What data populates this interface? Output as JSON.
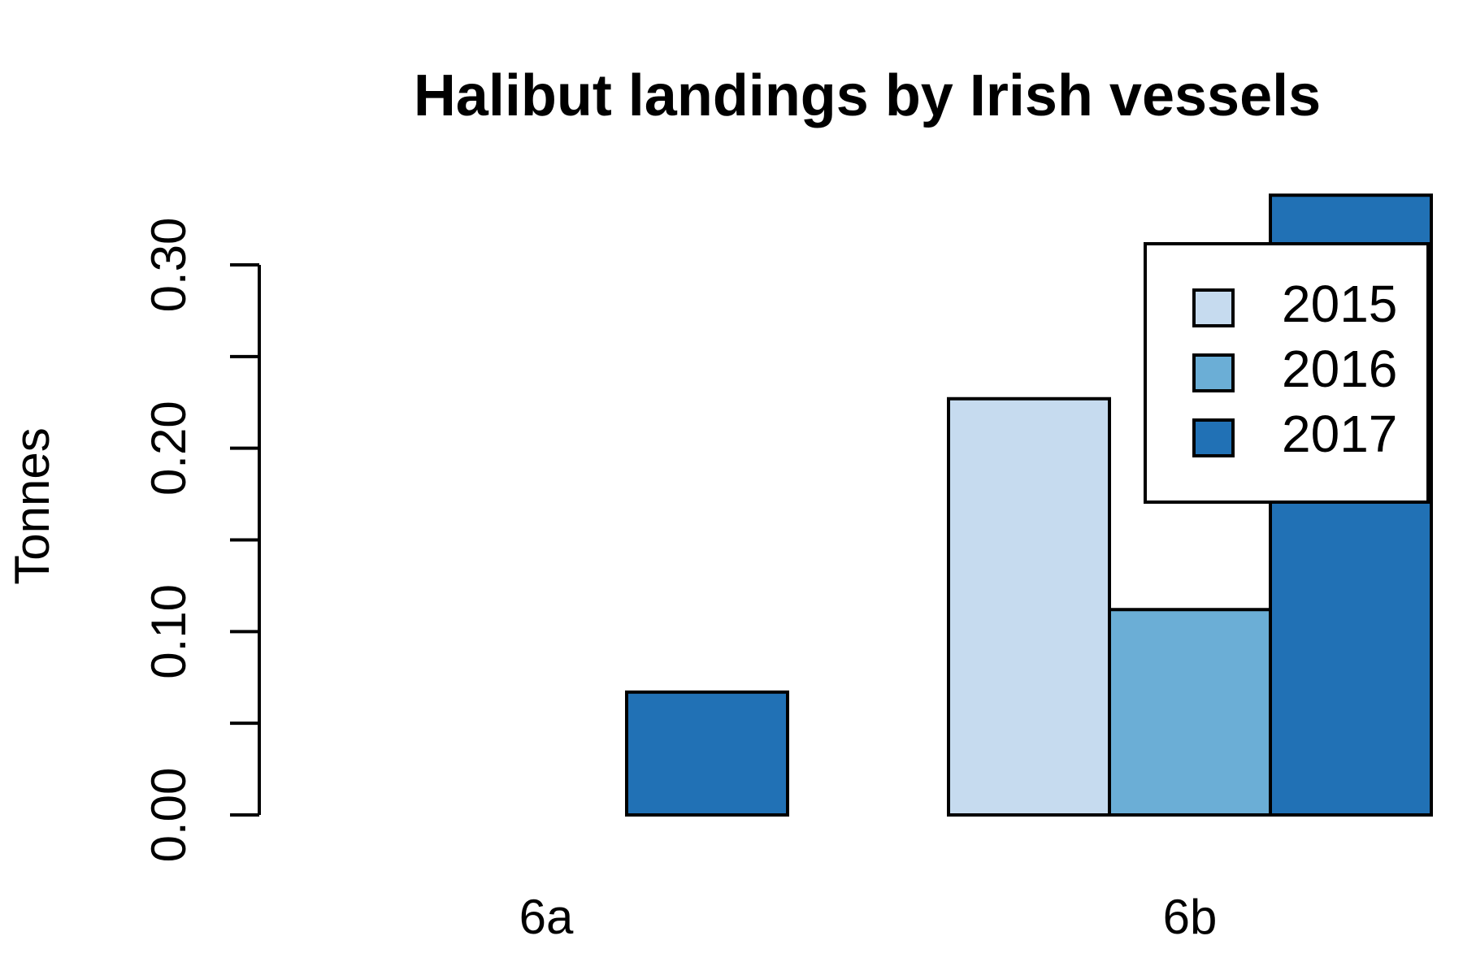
{
  "chart_data": {
    "type": "bar",
    "title": "Halibut landings by Irish vessels",
    "y_label": "Tonnes",
    "categories": [
      "6a",
      "6b"
    ],
    "series": [
      {
        "name": "2015",
        "color": "#c6dbef",
        "values": [
          0,
          0.227
        ]
      },
      {
        "name": "2016",
        "color": "#6baed6",
        "values": [
          0,
          0.112
        ]
      },
      {
        "name": "2017",
        "color": "#2171b5",
        "values": [
          0.067,
          0.338
        ]
      }
    ],
    "ylim": [
      0,
      0.3
    ],
    "yticks": [
      {
        "value": 0,
        "label": "0.00"
      },
      {
        "value": 0.1,
        "label": "0.10"
      },
      {
        "value": 0.2,
        "label": "0.20"
      },
      {
        "value": 0.3,
        "label": "0.30"
      }
    ],
    "yminor_ticks": [
      0.05,
      0.15,
      0.25
    ],
    "legend": "top-right"
  }
}
